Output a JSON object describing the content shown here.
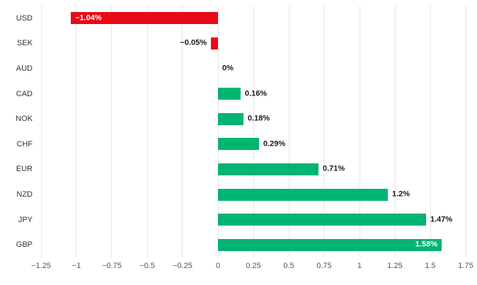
{
  "chart_data": {
    "type": "bar",
    "orientation": "horizontal",
    "title": "",
    "xlabel": "",
    "ylabel": "",
    "categories": [
      "USD",
      "SEK",
      "AUD",
      "CAD",
      "NOK",
      "CHF",
      "EUR",
      "NZD",
      "JPY",
      "GBP"
    ],
    "values": [
      -1.04,
      -0.05,
      0,
      0.16,
      0.18,
      0.29,
      0.71,
      1.2,
      1.47,
      1.58
    ],
    "value_labels": [
      "−1.04%",
      "−0.05%",
      "0%",
      "0.16%",
      "0.18%",
      "0.29%",
      "0.71%",
      "1.2%",
      "1.47%",
      "1.58%"
    ],
    "label_inside": [
      true,
      false,
      false,
      false,
      false,
      false,
      false,
      false,
      false,
      true
    ],
    "xlim": [
      -1.25,
      1.75
    ],
    "xticks": [
      -1.25,
      -1,
      -0.75,
      -0.5,
      -0.25,
      0,
      0.25,
      0.5,
      0.75,
      1,
      1.25,
      1.5,
      1.75
    ],
    "xtick_labels": [
      "−1.25",
      "−1",
      "−0.75",
      "−0.5",
      "−0.25",
      "0",
      "0.25",
      "0.5",
      "0.75",
      "1",
      "1.25",
      "1.5",
      "1.75"
    ],
    "grid": true,
    "legend": "none",
    "colors": {
      "positive": "#00b471",
      "negative": "#e60b16",
      "grid": "#e6e6e6",
      "inside_label_text": "#ffffff",
      "outside_label_text": "#1a1a1a"
    }
  }
}
